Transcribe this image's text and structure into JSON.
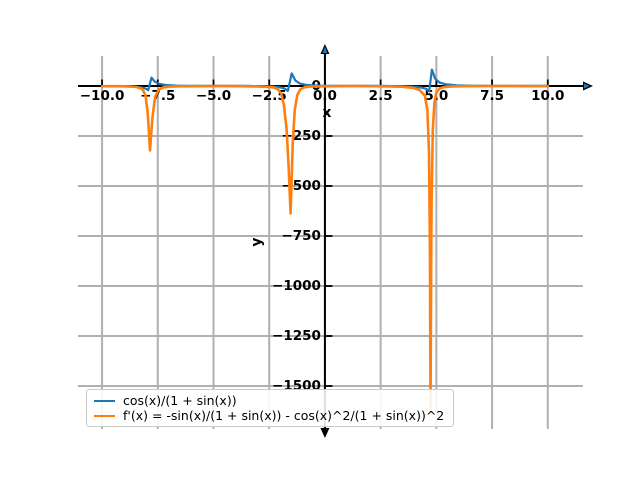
{
  "figure": {
    "background": "#ffffff",
    "colors": {
      "axis": "#000000",
      "grid": "#b0b0b0"
    }
  },
  "chart_data": {
    "type": "line",
    "title": "",
    "xlabel": "x",
    "ylabel": "y",
    "xlim": [
      -11.08,
      11.58
    ],
    "ylim": [
      -1715,
      150
    ],
    "grid": true,
    "legend_location": "lower left",
    "x_ticks": [
      {
        "value": -10.0,
        "label": "−10.0"
      },
      {
        "value": -7.5,
        "label": "−7.5"
      },
      {
        "value": -5.0,
        "label": "−5.0"
      },
      {
        "value": -2.5,
        "label": "−2.5"
      },
      {
        "value": 0.0,
        "label": "0.0"
      },
      {
        "value": 2.5,
        "label": "2.5"
      },
      {
        "value": 5.0,
        "label": "5.0"
      },
      {
        "value": 7.5,
        "label": "7.5"
      },
      {
        "value": 10.0,
        "label": "10.0"
      }
    ],
    "y_ticks": [
      {
        "value": 0,
        "label": "0"
      },
      {
        "value": -250,
        "label": "−250"
      },
      {
        "value": -500,
        "label": "−500"
      },
      {
        "value": -750,
        "label": "−750"
      },
      {
        "value": -1000,
        "label": "−1000"
      },
      {
        "value": -1250,
        "label": "−1250"
      },
      {
        "value": -1500,
        "label": "−1500"
      }
    ],
    "series": [
      {
        "name": "cos(x)/(1 + sin(x))",
        "color": "#1f77b4",
        "points": [
          [
            -10,
            -0.6
          ],
          [
            -9.4,
            -1
          ],
          [
            -8.9,
            -2
          ],
          [
            -8.5,
            -4
          ],
          [
            -8.2,
            -8
          ],
          [
            -8.02,
            -14
          ],
          [
            -7.93,
            -21
          ],
          [
            -7.78,
            42
          ],
          [
            -7.64,
            22
          ],
          [
            -7.45,
            11
          ],
          [
            -7.15,
            5
          ],
          [
            -6.7,
            2
          ],
          [
            -6.1,
            1
          ],
          [
            -5.3,
            0.5
          ],
          [
            -4.4,
            0.4
          ],
          [
            -3.5,
            0.6
          ],
          [
            -2.9,
            -1
          ],
          [
            -2.4,
            -2.5
          ],
          [
            -2.05,
            -6
          ],
          [
            -1.82,
            -12
          ],
          [
            -1.66,
            -24
          ],
          [
            -1.49,
            63
          ],
          [
            -1.33,
            28
          ],
          [
            -1.14,
            13
          ],
          [
            -0.86,
            6
          ],
          [
            -0.5,
            2.5
          ],
          [
            -0.1,
            1.2
          ],
          [
            0.6,
            0.6
          ],
          [
            1.6,
            0.4
          ],
          [
            2.6,
            0.5
          ],
          [
            3.3,
            -1
          ],
          [
            3.9,
            -3
          ],
          [
            4.3,
            -7
          ],
          [
            4.55,
            -14
          ],
          [
            4.68,
            -27
          ],
          [
            4.8,
            82
          ],
          [
            4.95,
            36
          ],
          [
            5.15,
            17
          ],
          [
            5.45,
            8
          ],
          [
            5.9,
            3
          ],
          [
            6.5,
            1.4
          ],
          [
            7.4,
            0.7
          ],
          [
            8.4,
            0.4
          ],
          [
            9.3,
            0.5
          ],
          [
            10,
            0.4
          ]
        ]
      },
      {
        "name": "f'(x) = -sin(x)/(1 + sin(x)) - cos(x)^2/(1 + sin(x))^2",
        "color": "#ff7f0e",
        "points": [
          [
            -10,
            -0.8
          ],
          [
            -9.2,
            -1.2
          ],
          [
            -8.7,
            -2.5
          ],
          [
            -8.45,
            -5
          ],
          [
            -8.2,
            -15
          ],
          [
            -8.05,
            -45
          ],
          [
            -7.95,
            -140
          ],
          [
            -7.85,
            -322
          ],
          [
            -7.74,
            -160
          ],
          [
            -7.62,
            -55
          ],
          [
            -7.46,
            -18
          ],
          [
            -7.26,
            -7
          ],
          [
            -7.0,
            -3
          ],
          [
            -6.5,
            -1.4
          ],
          [
            -5.6,
            -0.8
          ],
          [
            -4.7,
            -0.7
          ],
          [
            -3.8,
            -1.2
          ],
          [
            -3.1,
            -2.2
          ],
          [
            -2.6,
            -4
          ],
          [
            -2.32,
            -7
          ],
          [
            -2.12,
            -15
          ],
          [
            -1.96,
            -38
          ],
          [
            -1.84,
            -95
          ],
          [
            -1.72,
            -215
          ],
          [
            -1.63,
            -400
          ],
          [
            -1.54,
            -637
          ],
          [
            -1.44,
            -280
          ],
          [
            -1.35,
            -118
          ],
          [
            -1.24,
            -45
          ],
          [
            -1.1,
            -16
          ],
          [
            -0.9,
            -6
          ],
          [
            -0.6,
            -2.6
          ],
          [
            -0.2,
            -1.3
          ],
          [
            0.4,
            -0.8
          ],
          [
            1.3,
            -0.6
          ],
          [
            2.2,
            -1
          ],
          [
            2.9,
            -2
          ],
          [
            3.5,
            -4
          ],
          [
            3.95,
            -9
          ],
          [
            4.25,
            -20
          ],
          [
            4.48,
            -48
          ],
          [
            4.6,
            -120
          ],
          [
            4.67,
            -330
          ],
          [
            4.71,
            -800
          ],
          [
            4.735,
            -1617
          ],
          [
            4.78,
            -600
          ],
          [
            4.84,
            -220
          ],
          [
            4.91,
            -85
          ],
          [
            5.0,
            -32
          ],
          [
            5.15,
            -12
          ],
          [
            5.35,
            -5
          ],
          [
            5.7,
            -2.2
          ],
          [
            6.3,
            -1.1
          ],
          [
            7.3,
            -0.7
          ],
          [
            8.3,
            -0.7
          ],
          [
            9.2,
            -0.9
          ],
          [
            10,
            -0.8
          ]
        ]
      }
    ]
  }
}
